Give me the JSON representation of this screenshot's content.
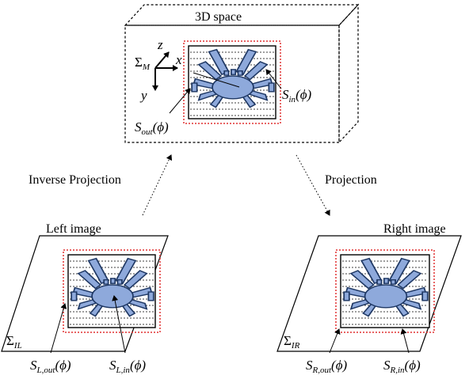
{
  "labels": {
    "space": "3D space",
    "inverse": "Inverse Projection",
    "projection": "Projection",
    "left_image": "Left image",
    "right_image": "Right image"
  },
  "math": {
    "sigma_m": {
      "base": "Σ",
      "sub": "M"
    },
    "axis_z": "z",
    "axis_x": "x",
    "axis_y": "y",
    "s_in": {
      "base": "S",
      "sub": "in",
      "arg": "(ϕ)"
    },
    "s_out": {
      "base": "S",
      "sub": "out",
      "arg": "(ϕ)"
    },
    "sigma_il": {
      "base": "Σ",
      "sub": "IL"
    },
    "sigma_ir": {
      "base": "Σ",
      "sub": "IR"
    },
    "s_l_out": {
      "base": "S",
      "sub": "L,out",
      "arg": "(ϕ)"
    },
    "s_l_in": {
      "base": "S",
      "sub": "L,in",
      "arg": "(ϕ)"
    },
    "s_r_out": {
      "base": "S",
      "sub": "R,out",
      "arg": "(ϕ)"
    },
    "s_r_in": {
      "base": "S",
      "sub": "R,in",
      "arg": "(ϕ)"
    }
  },
  "colors": {
    "crab_fill": "#8EA9DB",
    "crab_stroke": "#1F3864",
    "outer_contour": "#E03030",
    "line": "#000000"
  },
  "icons": [
    "crab-icon"
  ]
}
